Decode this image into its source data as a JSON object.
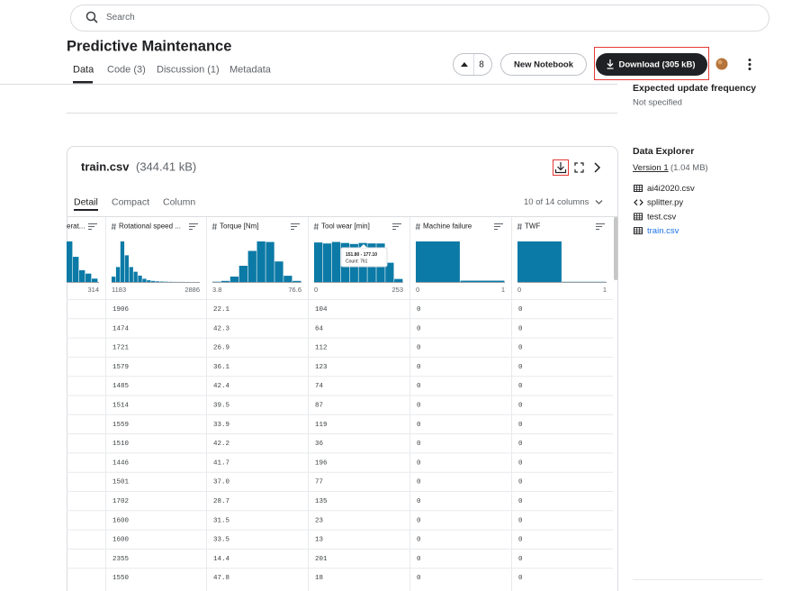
{
  "search_placeholder": "Search",
  "header": {
    "title": "Predictive Maintenance",
    "tabs": [
      "Data",
      "Code (3)",
      "Discussion (1)",
      "Metadata"
    ],
    "votes": "8",
    "new_notebook": "New Notebook",
    "download": "Download (305 kB)"
  },
  "sidebar": {
    "update_label": "Expected update frequency",
    "update_value": "Not specified",
    "explorer_title": "Data Explorer",
    "version": "Version 1",
    "version_size": "(1.04 MB)",
    "files": [
      "ai4i2020.csv",
      "splitter.py",
      "test.csv",
      "train.csv"
    ]
  },
  "file": {
    "name": "train.csv",
    "size": "(344.41 kB)",
    "views": [
      "Detail",
      "Compact",
      "Column"
    ],
    "column_count": "10 of 14 columns",
    "columns": [
      {
        "name": "erat...",
        "max": "314",
        "histogram": {
          "counts": [
            1450,
            900,
            420,
            300,
            120
          ],
          "ylim": [
            0,
            1450
          ]
        }
      },
      {
        "name": "Rotational speed ...",
        "min": "1183",
        "max": "2886",
        "histogram": {
          "counts": [
            250,
            700,
            1900,
            1250,
            700,
            480,
            300,
            150,
            80,
            50,
            30,
            20,
            12,
            8,
            5,
            4,
            3,
            2,
            1,
            1
          ],
          "ylim": [
            0,
            1900
          ]
        }
      },
      {
        "name": "Torque [Nm]",
        "min": "3.8",
        "max": "76.6",
        "histogram": {
          "counts": [
            10,
            40,
            200,
            600,
            1150,
            1500,
            1480,
            760,
            230,
            40
          ],
          "ylim": [
            0,
            1500
          ]
        }
      },
      {
        "name": "Tool wear [min]",
        "min": "0",
        "max": "253",
        "histogram": {
          "counts": [
            780,
            760,
            790,
            770,
            750,
            770,
            761,
            760,
            380,
            60
          ],
          "ylim": [
            0,
            800
          ]
        }
      },
      {
        "name": "Machine failure",
        "min": "0",
        "max": "1",
        "histogram": {
          "counts": [
            7700,
            250
          ],
          "ylim": [
            0,
            7700
          ]
        }
      },
      {
        "name": "TWF",
        "min": "0",
        "max": "1",
        "histogram": {
          "counts": [
            7900,
            40
          ],
          "ylim": [
            0,
            7900
          ]
        }
      }
    ],
    "tooltip": {
      "range": "151.80 - 177.10",
      "count": "Count: 761"
    },
    "rows": [
      [
        "1906",
        "22.1",
        "104",
        "0",
        "0"
      ],
      [
        "1474",
        "42.3",
        "64",
        "0",
        "0"
      ],
      [
        "1721",
        "26.9",
        "112",
        "0",
        "0"
      ],
      [
        "1579",
        "36.1",
        "123",
        "0",
        "0"
      ],
      [
        "1485",
        "42.4",
        "74",
        "0",
        "0"
      ],
      [
        "1514",
        "39.5",
        "87",
        "0",
        "0"
      ],
      [
        "1559",
        "33.9",
        "119",
        "0",
        "0"
      ],
      [
        "1510",
        "42.2",
        "36",
        "0",
        "0"
      ],
      [
        "1446",
        "41.7",
        "196",
        "0",
        "0"
      ],
      [
        "1501",
        "37.0",
        "77",
        "0",
        "0"
      ],
      [
        "1702",
        "28.7",
        "135",
        "0",
        "0"
      ],
      [
        "1600",
        "31.5",
        "23",
        "0",
        "0"
      ],
      [
        "1600",
        "33.5",
        "13",
        "0",
        "0"
      ],
      [
        "2355",
        "14.4",
        "201",
        "0",
        "0"
      ],
      [
        "1550",
        "47.8",
        "18",
        "0",
        "0"
      ]
    ]
  }
}
